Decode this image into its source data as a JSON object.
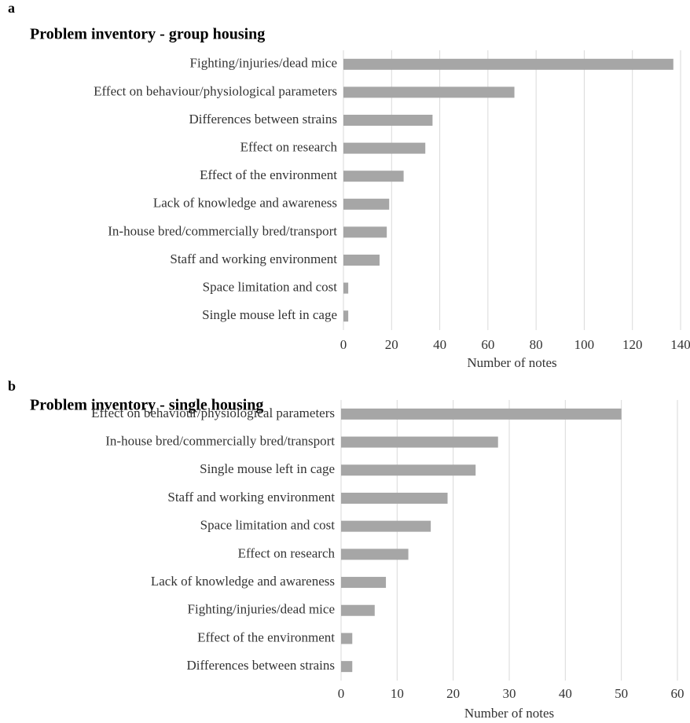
{
  "chart_data": [
    {
      "type": "barh",
      "label": "a",
      "title": "Problem inventory - group housing",
      "xlabel": "Number of notes",
      "categories": [
        "Fighting/injuries/dead mice",
        "Effect on behaviour/physiological parameters",
        "Differences between strains",
        "Effect on research",
        "Effect of the environment",
        "Lack of knowledge and awareness",
        "In-house bred/commercially bred/transport",
        "Staff and working environment",
        "Space limitation and cost",
        "Single mouse left in cage"
      ],
      "values": [
        137,
        71,
        37,
        34,
        25,
        19,
        18,
        15,
        2,
        2
      ],
      "color": "#a6a6a6",
      "xlim": [
        0,
        140
      ],
      "xticks": [
        0,
        20,
        40,
        60,
        80,
        100,
        120,
        140
      ],
      "grid": true
    },
    {
      "type": "barh",
      "label": "b",
      "title": "Problem inventory - single housing",
      "xlabel": "Number of notes",
      "categories": [
        "Effect on behaviour/physiological parameters",
        "In-house bred/commercially bred/transport",
        "Single mouse left in cage",
        "Staff and working environment",
        "Space limitation and cost",
        "Effect on research",
        "Lack of knowledge and awareness",
        "Fighting/injuries/dead mice",
        "Effect of the environment",
        "Differences between strains"
      ],
      "values": [
        50,
        28,
        24,
        19,
        16,
        12,
        8,
        6,
        2,
        2
      ],
      "color": "#a6a6a6",
      "xlim": [
        0,
        60
      ],
      "xticks": [
        0,
        10,
        20,
        30,
        40,
        50,
        60
      ],
      "grid": true
    }
  ]
}
